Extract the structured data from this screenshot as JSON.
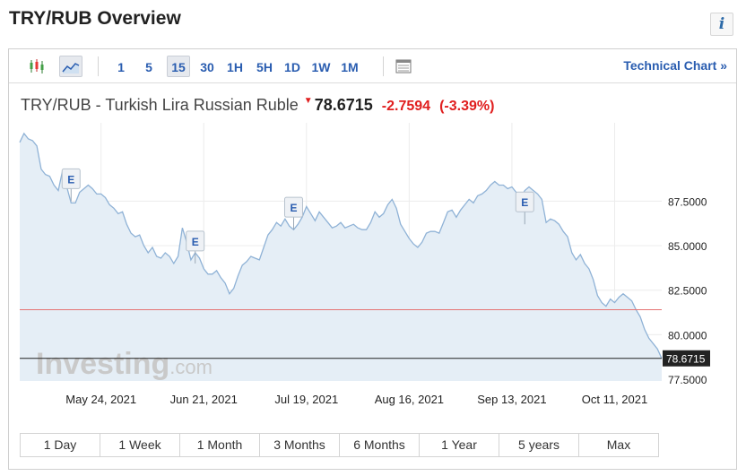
{
  "page": {
    "title": "TRY/RUB Overview",
    "info_glyph": "i"
  },
  "toolbar": {
    "chart_type_icons": [
      "candlestick-icon",
      "area-line-icon"
    ],
    "timeframes": [
      "1",
      "5",
      "15",
      "30",
      "1H",
      "5H",
      "1D",
      "1W",
      "1M"
    ],
    "active_timeframe": "15",
    "table_icon": "table-icon",
    "technical_chart_label": "Technical Chart »"
  },
  "quote": {
    "name": "TRY/RUB - Turkish Lira Russian Ruble",
    "direction_icon": "down-arrow-icon",
    "price": "78.6715",
    "change": "-2.7594",
    "change_pct": "(-3.39%)"
  },
  "periods": [
    "1 Day",
    "1 Week",
    "1 Month",
    "3 Months",
    "6 Months",
    "1 Year",
    "5 years",
    "Max"
  ],
  "colors": {
    "line": "#8fb2d6",
    "fill": "#e5eef6",
    "reference_line": "#e57373",
    "price_line": "#222222",
    "positive": "#2a5db0",
    "negative": "#e01e1e"
  },
  "chart_data": {
    "type": "area",
    "watermark": "Investing.com",
    "y_ticks": [
      "87.5000",
      "85.0000",
      "82.5000",
      "80.0000",
      "77.5000"
    ],
    "y_tick_values": [
      87.5,
      85.0,
      82.5,
      80.0,
      77.5
    ],
    "ylim": [
      77.4,
      91.9
    ],
    "x_ticks": [
      "May 24, 2021",
      "Jun 21, 2021",
      "Jul 19, 2021",
      "Aug 16, 2021",
      "Sep 13, 2021",
      "Oct 11, 2021"
    ],
    "x_tick_index": [
      19,
      43,
      67,
      91,
      115,
      139
    ],
    "last_price_label": "78.6715",
    "last_price": 78.6715,
    "reference_level": 81.4,
    "events": [
      {
        "label": "E",
        "index": 12,
        "value": 87.5
      },
      {
        "label": "E",
        "index": 41,
        "value": 84.0
      },
      {
        "label": "E",
        "index": 64,
        "value": 85.9
      },
      {
        "label": "E",
        "index": 118,
        "value": 86.2
      }
    ],
    "values": [
      90.8,
      91.3,
      91.0,
      90.9,
      90.6,
      89.3,
      89.0,
      88.9,
      88.4,
      88.1,
      89.2,
      88.3,
      87.4,
      87.4,
      88.0,
      88.2,
      88.4,
      88.2,
      87.9,
      87.9,
      87.7,
      87.3,
      87.1,
      86.8,
      86.9,
      86.2,
      85.7,
      85.5,
      85.6,
      85.0,
      84.6,
      84.9,
      84.4,
      84.3,
      84.6,
      84.4,
      84.0,
      84.4,
      86.0,
      85.2,
      84.2,
      84.6,
      84.3,
      83.7,
      83.4,
      83.4,
      83.6,
      83.2,
      82.9,
      82.3,
      82.6,
      83.3,
      83.9,
      84.1,
      84.4,
      84.3,
      84.2,
      84.9,
      85.6,
      85.9,
      86.3,
      86.1,
      86.5,
      86.1,
      85.9,
      86.2,
      86.6,
      87.2,
      86.8,
      86.4,
      86.9,
      86.6,
      86.3,
      86.0,
      86.1,
      86.3,
      86.0,
      86.1,
      86.2,
      86.0,
      85.9,
      85.9,
      86.3,
      86.9,
      86.6,
      86.8,
      87.3,
      87.6,
      87.1,
      86.2,
      85.8,
      85.4,
      85.1,
      84.9,
      85.2,
      85.7,
      85.8,
      85.8,
      85.7,
      86.3,
      86.9,
      87.0,
      86.6,
      87.0,
      87.3,
      87.6,
      87.4,
      87.8,
      87.9,
      88.1,
      88.4,
      88.6,
      88.4,
      88.4,
      88.2,
      88.3,
      88.0,
      87.7,
      88.1,
      88.3,
      88.1,
      87.9,
      87.6,
      86.3,
      86.5,
      86.4,
      86.2,
      85.8,
      85.5,
      84.6,
      84.2,
      84.5,
      84.0,
      83.7,
      83.1,
      82.2,
      81.8,
      81.6,
      82.0,
      81.8,
      82.1,
      82.3,
      82.1,
      81.9,
      81.4,
      81.0,
      80.3,
      79.8,
      79.5,
      79.2,
      78.67
    ]
  }
}
